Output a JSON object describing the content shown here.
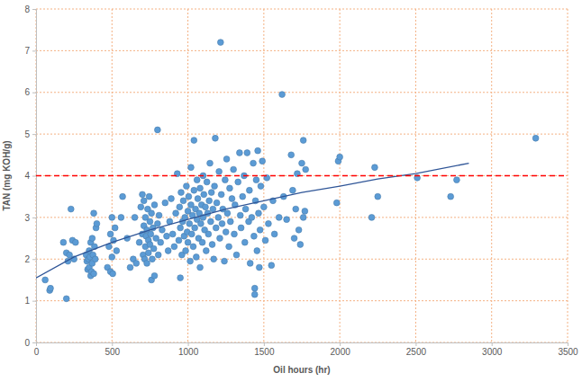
{
  "chart_data": {
    "type": "scatter",
    "xlabel": "Oil hours (hr)",
    "ylabel": "TAN (mg KOH/g)",
    "xlim": [
      0,
      3500
    ],
    "ylim": [
      0,
      8
    ],
    "xticks": [
      0,
      500,
      1000,
      1500,
      2000,
      2500,
      3000,
      3500
    ],
    "yticks": [
      0,
      1,
      2,
      3,
      4,
      5,
      6,
      7,
      8
    ],
    "grid": true,
    "series": [
      {
        "type": "scatter",
        "marker": "circle",
        "color": "#5b9bd5",
        "x": [
          60,
          90,
          95,
          200,
          180,
          200,
          210,
          220,
          230,
          240,
          250,
          260,
          330,
          335,
          340,
          345,
          350,
          350,
          355,
          360,
          360,
          365,
          370,
          370,
          375,
          380,
          380,
          385,
          390,
          395,
          400,
          470,
          480,
          490,
          490,
          500,
          500,
          505,
          510,
          520,
          530,
          560,
          570,
          600,
          620,
          640,
          650,
          660,
          680,
          690,
          700,
          700,
          705,
          710,
          710,
          715,
          720,
          720,
          725,
          730,
          730,
          735,
          740,
          740,
          745,
          750,
          750,
          755,
          760,
          760,
          765,
          770,
          775,
          780,
          780,
          790,
          800,
          800,
          805,
          810,
          820,
          830,
          850,
          860,
          870,
          880,
          890,
          900,
          910,
          920,
          930,
          940,
          945,
          950,
          950,
          955,
          960,
          965,
          970,
          975,
          980,
          985,
          990,
          995,
          1000,
          1000,
          1005,
          1010,
          1015,
          1020,
          1020,
          1025,
          1030,
          1035,
          1040,
          1040,
          1045,
          1050,
          1055,
          1060,
          1060,
          1065,
          1070,
          1075,
          1080,
          1080,
          1085,
          1090,
          1095,
          1100,
          1100,
          1105,
          1110,
          1115,
          1120,
          1125,
          1130,
          1135,
          1140,
          1145,
          1150,
          1155,
          1160,
          1165,
          1170,
          1175,
          1180,
          1185,
          1190,
          1200,
          1205,
          1210,
          1215,
          1220,
          1225,
          1230,
          1240,
          1245,
          1250,
          1255,
          1260,
          1270,
          1275,
          1280,
          1290,
          1300,
          1305,
          1310,
          1320,
          1330,
          1340,
          1345,
          1350,
          1360,
          1370,
          1375,
          1380,
          1390,
          1400,
          1405,
          1410,
          1420,
          1430,
          1435,
          1440,
          1440,
          1445,
          1450,
          1455,
          1460,
          1465,
          1470,
          1475,
          1480,
          1490,
          1500,
          1510,
          1520,
          1530,
          1550,
          1560,
          1570,
          1600,
          1620,
          1630,
          1650,
          1680,
          1690,
          1700,
          1710,
          1720,
          1730,
          1740,
          1750,
          1760,
          1760,
          1770,
          1775,
          1980,
          1990,
          2000,
          2210,
          2230,
          2250,
          2510,
          2730,
          2770,
          3290
        ],
        "values": [
          1.5,
          1.25,
          1.3,
          1.05,
          2.4,
          2.15,
          1.95,
          2.1,
          3.2,
          2.45,
          2.0,
          2.4,
          2.1,
          1.95,
          1.75,
          2.0,
          2.2,
          1.8,
          2.05,
          1.6,
          2.4,
          1.7,
          2.5,
          1.9,
          2.1,
          3.1,
          1.65,
          2.3,
          2.0,
          2.75,
          2.85,
          1.8,
          2.3,
          1.7,
          2.6,
          3.0,
          2.05,
          1.65,
          2.45,
          2.75,
          2.2,
          3.0,
          3.5,
          2.5,
          1.8,
          2.0,
          3.0,
          1.9,
          2.4,
          3.25,
          3.55,
          2.6,
          2.1,
          2.8,
          3.4,
          2.0,
          2.3,
          3.0,
          2.55,
          1.9,
          2.7,
          3.2,
          2.45,
          2.15,
          3.5,
          2.9,
          2.35,
          2.6,
          1.5,
          3.1,
          2.0,
          2.75,
          2.25,
          1.6,
          3.3,
          2.5,
          2.85,
          5.1,
          2.1,
          3.05,
          2.4,
          2.7,
          3.35,
          2.55,
          2.2,
          2.9,
          3.45,
          2.6,
          2.3,
          3.1,
          4.05,
          2.45,
          3.25,
          1.55,
          2.75,
          3.6,
          2.1,
          2.9,
          3.4,
          2.55,
          3.0,
          2.2,
          3.75,
          2.65,
          3.15,
          2.4,
          3.5,
          2.85,
          1.95,
          3.3,
          4.2,
          2.6,
          3.05,
          2.3,
          3.65,
          4.85,
          2.75,
          3.2,
          2.05,
          3.9,
          2.95,
          3.45,
          2.5,
          3.1,
          1.8,
          3.7,
          2.85,
          3.3,
          2.4,
          4.0,
          3.0,
          3.55,
          2.7,
          3.25,
          2.2,
          3.85,
          3.1,
          2.6,
          3.4,
          4.3,
          2.9,
          3.6,
          2.35,
          3.2,
          2.0,
          3.75,
          4.9,
          2.75,
          3.35,
          3.0,
          4.1,
          2.5,
          7.2,
          3.55,
          2.85,
          3.2,
          1.95,
          3.9,
          2.65,
          4.4,
          3.1,
          2.3,
          3.7,
          2.9,
          3.45,
          4.15,
          2.6,
          3.3,
          2.1,
          3.85,
          4.55,
          3.05,
          2.75,
          3.5,
          4.0,
          2.4,
          3.2,
          4.55,
          2.9,
          3.65,
          1.9,
          3.0,
          4.3,
          2.55,
          1.3,
          1.15,
          3.4,
          3.9,
          2.2,
          4.6,
          3.1,
          1.8,
          2.7,
          3.75,
          4.35,
          3.25,
          2.45,
          3.95,
          2.85,
          1.85,
          3.4,
          2.6,
          3.0,
          5.95,
          3.5,
          2.95,
          4.5,
          3.65,
          2.5,
          3.2,
          4.05,
          2.7,
          2.35,
          4.3,
          3.0,
          4.85,
          3.15,
          4.15,
          3.35,
          4.35,
          4.45,
          3.0,
          4.2,
          3.5,
          3.95,
          3.5,
          3.9,
          4.9
        ]
      },
      {
        "type": "line",
        "color": "#2f5597",
        "line_style": "solid",
        "x": [
          0,
          250,
          500,
          750,
          1000,
          1250,
          1500,
          1750,
          2000,
          2250,
          2500,
          2850
        ],
        "values": [
          1.55,
          2.05,
          2.4,
          2.7,
          2.95,
          3.2,
          3.4,
          3.6,
          3.75,
          3.92,
          4.05,
          4.3
        ]
      },
      {
        "type": "line",
        "color": "#ff0000",
        "line_style": "dashed",
        "x": [
          0,
          3500
        ],
        "values": [
          4,
          4
        ]
      }
    ]
  }
}
